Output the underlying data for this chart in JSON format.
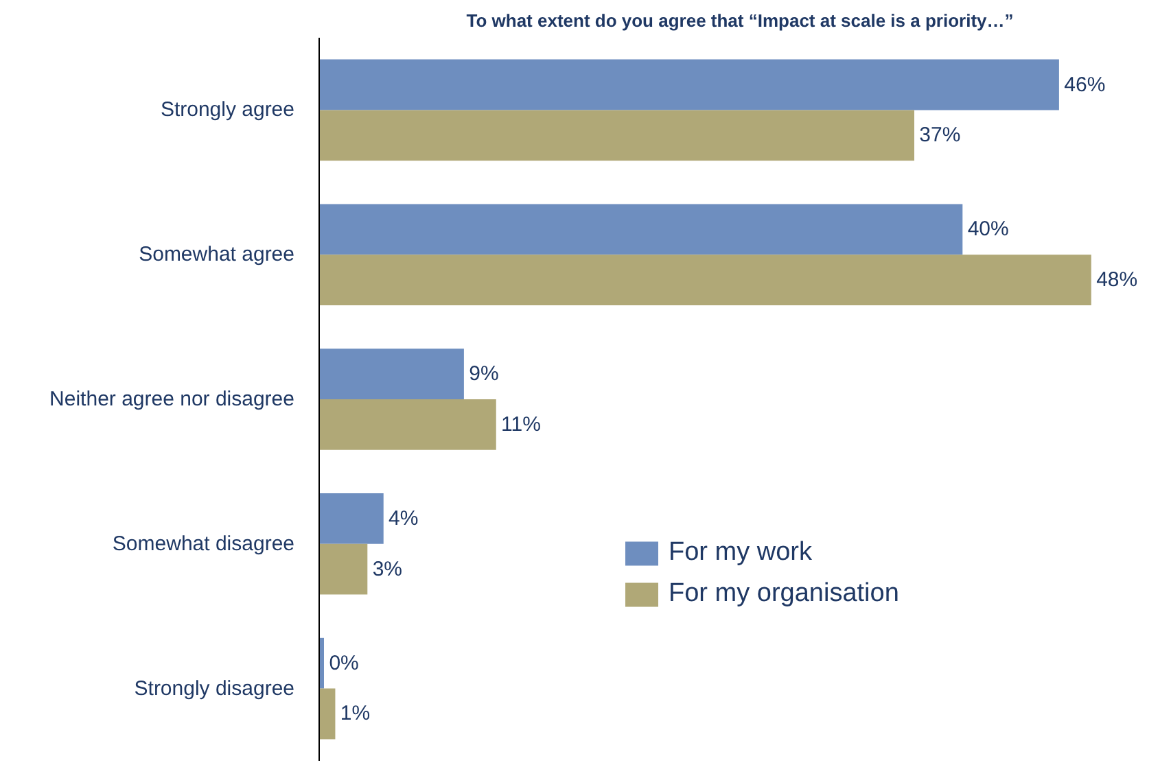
{
  "chart_data": {
    "type": "bar",
    "orientation": "horizontal",
    "title": "To what extent do you agree that “Impact at scale is a priority…”",
    "categories": [
      "Strongly agree",
      "Somewhat agree",
      "Neither agree nor disagree",
      "Somewhat disagree",
      "Strongly disagree"
    ],
    "series": [
      {
        "name": "For my work",
        "color": "#6e8ebf",
        "values": [
          46,
          40,
          9,
          4,
          0.3
        ],
        "value_labels": [
          "46%",
          "40%",
          "9%",
          "4%",
          "0%"
        ]
      },
      {
        "name": "For my organisation",
        "color": "#b0a877",
        "values": [
          37,
          48,
          11,
          3,
          1
        ],
        "value_labels": [
          "37%",
          "48%",
          "11%",
          "3%",
          "1%"
        ]
      }
    ],
    "legend": "right",
    "grid": false
  }
}
